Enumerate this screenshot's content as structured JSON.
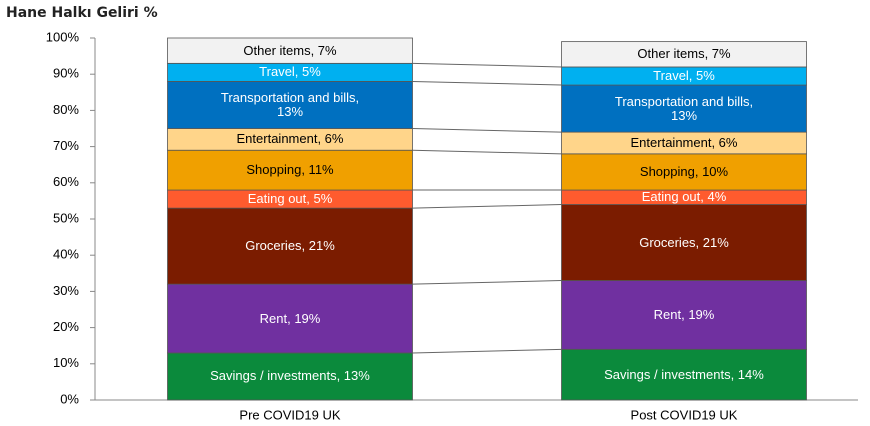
{
  "chart_data": {
    "type": "stacked_bar",
    "title": "Hane Halkı Geliri %",
    "categories": [
      "Pre COVID19 UK",
      "Post COVID19 UK"
    ],
    "series": [
      {
        "name": "Savings / investments",
        "color": "#0b8a3c",
        "values": [
          13,
          14
        ],
        "value_labels": [
          "Savings / investments, 13%",
          "Savings / investments, 14%"
        ]
      },
      {
        "name": "Rent",
        "color": "#7030a0",
        "values": [
          19,
          19
        ],
        "value_labels": [
          "Rent, 19%",
          "Rent, 19%"
        ]
      },
      {
        "name": "Groceries",
        "color": "#7b1c00",
        "values": [
          21,
          21
        ],
        "value_labels": [
          "Groceries, 21%",
          "Groceries, 21%"
        ]
      },
      {
        "name": "Eating out",
        "color": "#ff5b2e",
        "values": [
          5,
          4
        ],
        "value_labels": [
          "Eating out, 5%",
          "Eating out, 4%"
        ]
      },
      {
        "name": "Shopping",
        "color": "#f0a000",
        "values": [
          11,
          10
        ],
        "value_labels": [
          "Shopping, 11%",
          "Shopping, 10%"
        ]
      },
      {
        "name": "Entertainment",
        "color": "#ffd58a",
        "values": [
          6,
          6
        ],
        "value_labels": [
          "Entertainment, 6%",
          "Entertainment, 6%"
        ]
      },
      {
        "name": "Transportation and bills",
        "color": "#0070c0",
        "values": [
          13,
          13
        ],
        "value_labels": [
          "Transportation and bills, 13%",
          "Transportation and bills, 13%"
        ]
      },
      {
        "name": "Travel",
        "color": "#00b0f0",
        "values": [
          5,
          5
        ],
        "value_labels": [
          "Travel, 5%",
          "Travel, 5%"
        ]
      },
      {
        "name": "Other items",
        "color": "#f2f2f2",
        "values": [
          7,
          7
        ],
        "value_labels": [
          "Other items, 7%",
          "Other items, 7%"
        ]
      }
    ],
    "ylim": [
      0,
      100
    ],
    "yticks": [
      {
        "value": 0,
        "label": "0%"
      },
      {
        "value": 10,
        "label": "10%"
      },
      {
        "value": 20,
        "label": "20%"
      },
      {
        "value": 30,
        "label": "30%"
      },
      {
        "value": 40,
        "label": "40%"
      },
      {
        "value": 50,
        "label": "50%"
      },
      {
        "value": 60,
        "label": "60%"
      },
      {
        "value": 70,
        "label": "70%"
      },
      {
        "value": 80,
        "label": "80%"
      },
      {
        "value": 90,
        "label": "90%"
      },
      {
        "value": 100,
        "label": "100%"
      }
    ]
  }
}
